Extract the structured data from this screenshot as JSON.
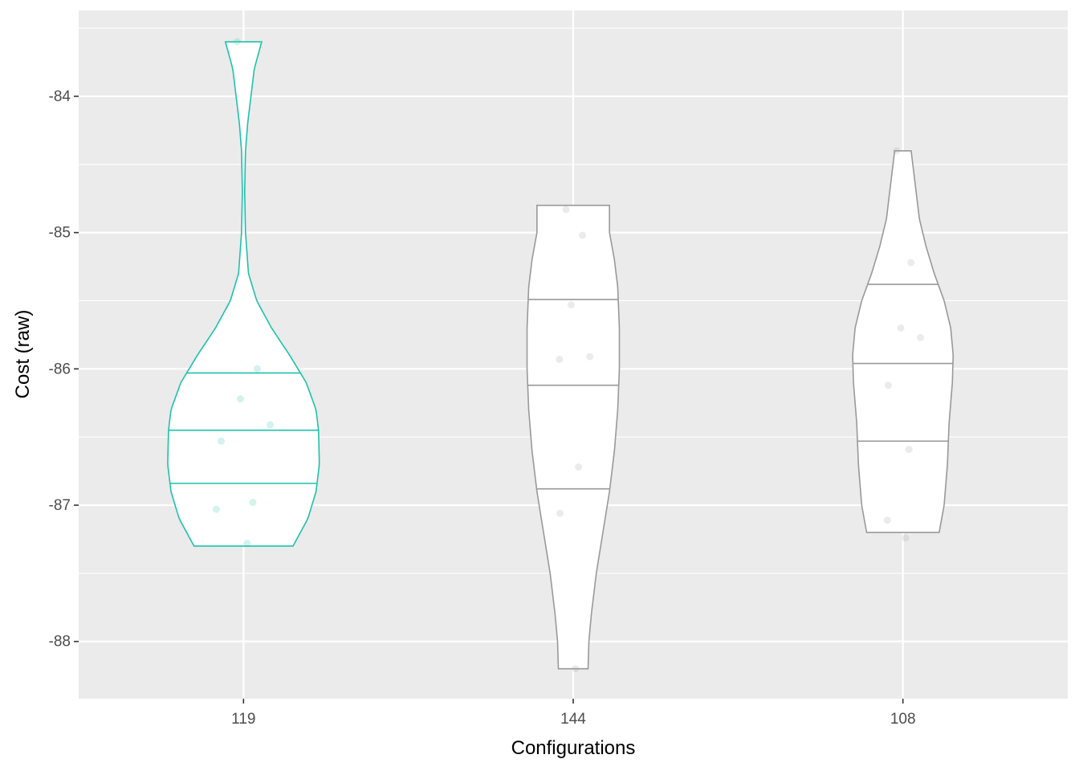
{
  "chart_data": {
    "type": "violin",
    "xlabel": "Configurations",
    "ylabel": "Cost (raw)",
    "categories": [
      "119",
      "144",
      "108"
    ],
    "ylim": [
      -88.42,
      -83.37
    ],
    "yticks": [
      -84,
      -85,
      -86,
      -87,
      -88
    ],
    "ytick_labels": [
      "-84",
      "-85",
      "-86",
      "-87",
      "-88"
    ],
    "grid": true,
    "panel_color": "#ebebeb",
    "violins": [
      {
        "category": "119",
        "color": "#1fc1ab",
        "min": -87.3,
        "max": -83.6,
        "quantiles": [
          -86.84,
          -86.45,
          -86.03
        ],
        "profile": [
          [
            -87.3,
            0.3
          ],
          [
            -87.1,
            0.39
          ],
          [
            -86.9,
            0.44
          ],
          [
            -86.7,
            0.46
          ],
          [
            -86.45,
            0.455
          ],
          [
            -86.3,
            0.44
          ],
          [
            -86.1,
            0.38
          ],
          [
            -85.9,
            0.28
          ],
          [
            -85.7,
            0.17
          ],
          [
            -85.5,
            0.08
          ],
          [
            -85.3,
            0.03
          ],
          [
            -85.0,
            0.012
          ],
          [
            -84.7,
            0.007
          ],
          [
            -84.4,
            0.012
          ],
          [
            -84.2,
            0.025
          ],
          [
            -84.0,
            0.045
          ],
          [
            -83.8,
            0.065
          ],
          [
            -83.6,
            0.11
          ]
        ],
        "points": [
          -83.6,
          -86.0,
          -86.22,
          -86.41,
          -86.53,
          -86.98,
          -87.03,
          -87.28
        ]
      },
      {
        "category": "144",
        "color": "#999999",
        "min": -88.2,
        "max": -84.8,
        "quantiles": [
          -86.88,
          -86.12,
          -85.49
        ],
        "profile": [
          [
            -88.2,
            0.09
          ],
          [
            -88.0,
            0.095
          ],
          [
            -87.8,
            0.11
          ],
          [
            -87.5,
            0.14
          ],
          [
            -87.2,
            0.18
          ],
          [
            -86.9,
            0.22
          ],
          [
            -86.6,
            0.25
          ],
          [
            -86.3,
            0.27
          ],
          [
            -86.0,
            0.28
          ],
          [
            -85.7,
            0.28
          ],
          [
            -85.4,
            0.27
          ],
          [
            -85.2,
            0.25
          ],
          [
            -85.0,
            0.22
          ],
          [
            -84.8,
            0.22
          ]
        ],
        "points": [
          -84.83,
          -85.02,
          -85.53,
          -85.91,
          -85.93,
          -86.72,
          -87.06,
          -88.2
        ]
      },
      {
        "category": "108",
        "color": "#999999",
        "min": -87.2,
        "max": -84.4,
        "quantiles": [
          -86.53,
          -85.96,
          -85.38
        ],
        "profile": [
          [
            -87.2,
            0.22
          ],
          [
            -87.0,
            0.25
          ],
          [
            -86.7,
            0.27
          ],
          [
            -86.4,
            0.28
          ],
          [
            -86.1,
            0.3
          ],
          [
            -85.9,
            0.305
          ],
          [
            -85.7,
            0.29
          ],
          [
            -85.5,
            0.25
          ],
          [
            -85.3,
            0.19
          ],
          [
            -85.1,
            0.14
          ],
          [
            -84.9,
            0.1
          ],
          [
            -84.7,
            0.08
          ],
          [
            -84.5,
            0.06
          ],
          [
            -84.4,
            0.05
          ]
        ],
        "points": [
          -84.4,
          -85.22,
          -85.7,
          -85.77,
          -86.12,
          -86.59,
          -87.11,
          -87.24
        ]
      }
    ]
  }
}
